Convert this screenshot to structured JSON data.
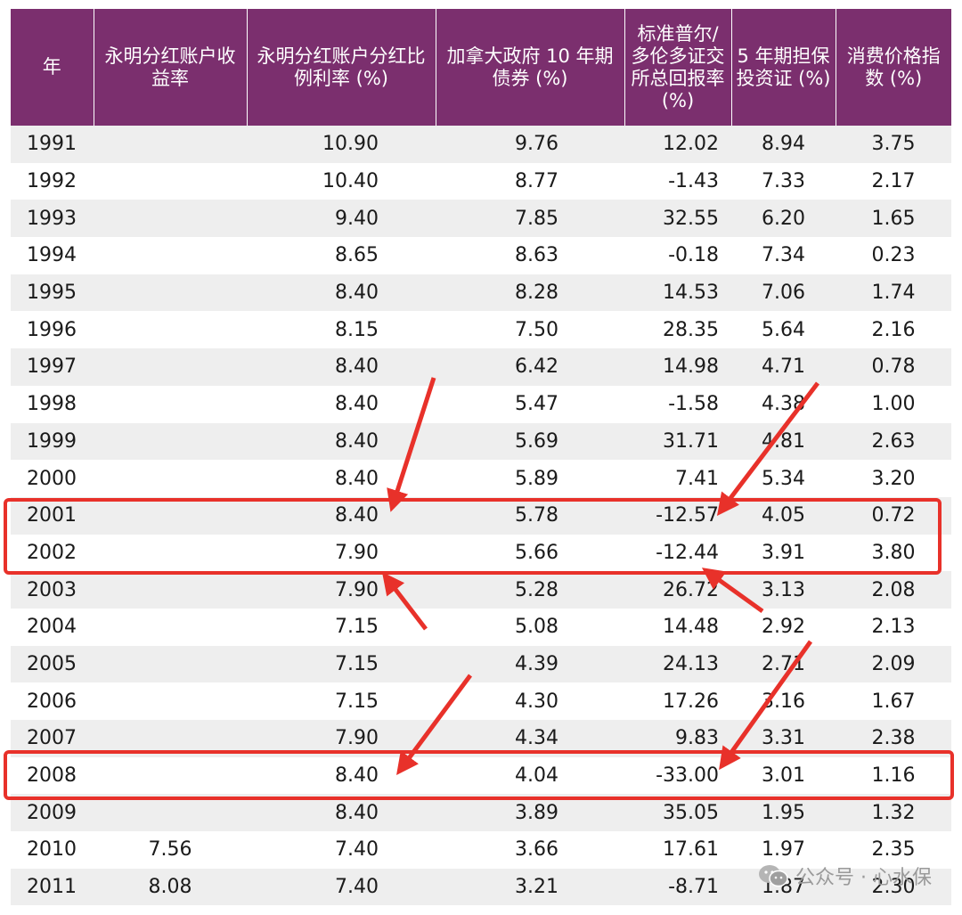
{
  "columns": [
    "年",
    "永明分红账户收益率",
    "永明分红账户分红比例利率 (%)",
    "加拿大政府 10 年期债券 (%)",
    "标准普尔/多伦多证交所总回报率 (%)",
    "5 年期担保投资证 (%)",
    "消费价格指数 (%)"
  ],
  "rows": [
    [
      "1991",
      "",
      "10.90",
      "9.76",
      "12.02",
      "8.94",
      "3.75"
    ],
    [
      "1992",
      "",
      "10.40",
      "8.77",
      "-1.43",
      "7.33",
      "2.17"
    ],
    [
      "1993",
      "",
      "9.40",
      "7.85",
      "32.55",
      "6.20",
      "1.65"
    ],
    [
      "1994",
      "",
      "8.65",
      "8.63",
      "-0.18",
      "7.34",
      "0.23"
    ],
    [
      "1995",
      "",
      "8.40",
      "8.28",
      "14.53",
      "7.06",
      "1.74"
    ],
    [
      "1996",
      "",
      "8.15",
      "7.50",
      "28.35",
      "5.64",
      "2.16"
    ],
    [
      "1997",
      "",
      "8.40",
      "6.42",
      "14.98",
      "4.71",
      "0.78"
    ],
    [
      "1998",
      "",
      "8.40",
      "5.47",
      "-1.58",
      "4.38",
      "1.00"
    ],
    [
      "1999",
      "",
      "8.40",
      "5.69",
      "31.71",
      "4.81",
      "2.63"
    ],
    [
      "2000",
      "",
      "8.40",
      "5.89",
      "7.41",
      "5.34",
      "3.20"
    ],
    [
      "2001",
      "",
      "8.40",
      "5.78",
      "-12.57",
      "4.05",
      "0.72"
    ],
    [
      "2002",
      "",
      "7.90",
      "5.66",
      "-12.44",
      "3.91",
      "3.80"
    ],
    [
      "2003",
      "",
      "7.90",
      "5.28",
      "26.72",
      "3.13",
      "2.08"
    ],
    [
      "2004",
      "",
      "7.15",
      "5.08",
      "14.48",
      "2.92",
      "2.13"
    ],
    [
      "2005",
      "",
      "7.15",
      "4.39",
      "24.13",
      "2.71",
      "2.09"
    ],
    [
      "2006",
      "",
      "7.15",
      "4.30",
      "17.26",
      "3.16",
      "1.67"
    ],
    [
      "2007",
      "",
      "7.90",
      "4.34",
      "9.83",
      "3.31",
      "2.38"
    ],
    [
      "2008",
      "",
      "8.40",
      "4.04",
      "-33.00",
      "3.01",
      "1.16"
    ],
    [
      "2009",
      "",
      "8.40",
      "3.89",
      "35.05",
      "1.95",
      "1.32"
    ],
    [
      "2010",
      "7.56",
      "7.40",
      "3.66",
      "17.61",
      "1.97",
      "2.35"
    ],
    [
      "2011",
      "8.08",
      "7.40",
      "3.21",
      "-8.71",
      "1.87",
      "2.30"
    ]
  ],
  "watermark": "公众号 · 心水保",
  "colors": {
    "header_bg": "#7b2f6e",
    "header_text": "#ffffff",
    "stripe": "#eeeeee",
    "annotation": "#e8312a"
  }
}
